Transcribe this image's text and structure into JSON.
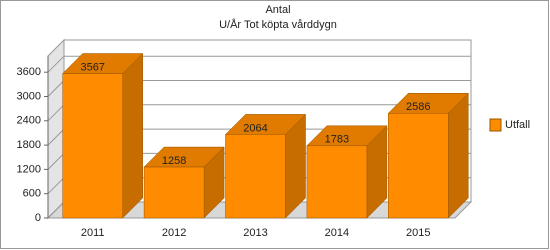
{
  "chart_data": {
    "type": "bar3d",
    "title": "Antal",
    "subtitle": "U/År Tot köpta vårddygn",
    "categories": [
      "2011",
      "2012",
      "2013",
      "2014",
      "2015"
    ],
    "series": [
      {
        "name": "Utfall",
        "color": "#ff8c00",
        "values": [
          3567,
          1258,
          2064,
          1783,
          2586
        ]
      }
    ],
    "ylim": [
      0,
      4000
    ],
    "yticks": [
      0,
      600,
      1200,
      1800,
      2400,
      3000,
      3600
    ],
    "grid": true,
    "legend": "right"
  }
}
